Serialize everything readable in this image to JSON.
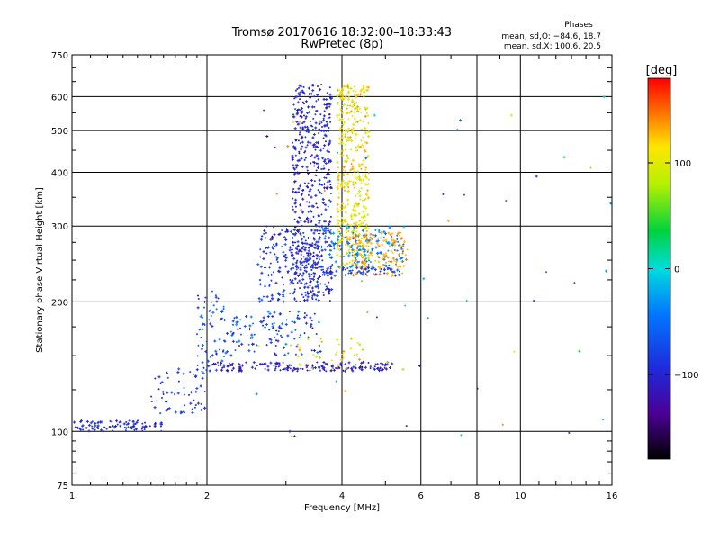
{
  "chart_data": {
    "type": "scatter",
    "title": "Tromsø 20170616 18:32:00–18:33:43",
    "subtitle": "RwPretec (8p)",
    "xlabel": "Frequency [MHz]",
    "ylabel": "Stationary phase Virtual Height [km]",
    "x_scale": "log",
    "y_scale": "log",
    "xlim": [
      1,
      16
    ],
    "ylim": [
      75,
      750
    ],
    "x_ticks": [
      1,
      2,
      4,
      6,
      8,
      10,
      16
    ],
    "x_tick_labels": [
      "1",
      "2",
      "4",
      "6",
      "8",
      "10",
      "16"
    ],
    "y_ticks": [
      75,
      100,
      200,
      300,
      400,
      500,
      600,
      750
    ],
    "y_tick_labels": [
      "75",
      "100",
      "200",
      "300",
      "400",
      "500",
      "600",
      "750"
    ],
    "grid": true,
    "phase_info": {
      "heading": "Phases",
      "line_o": "mean, sd,O: −84.6, 18.7",
      "line_x": "mean, sd,X: 100.6, 20.5"
    },
    "colorbar": {
      "label": "[deg]",
      "min": -180,
      "max": 180,
      "ticks": [
        100,
        0,
        -100
      ],
      "tick_labels": [
        "100",
        "0",
        "−100"
      ]
    },
    "point_groups": [
      {
        "name": "E/F1 low trace",
        "f": [
          1.0,
          1.6
        ],
        "h": [
          100,
          106
        ],
        "phase": [
          -110,
          -80
        ],
        "n": 90
      },
      {
        "name": "F1 ramp",
        "f": [
          1.5,
          2.0
        ],
        "h": [
          110,
          140
        ],
        "phase": [
          -105,
          -70
        ],
        "n": 60
      },
      {
        "name": "F1 ramp upper",
        "f": [
          1.9,
          2.2
        ],
        "h": [
          135,
          215
        ],
        "phase": [
          -100,
          -40
        ],
        "n": 70
      },
      {
        "name": "E-s layer band",
        "f": [
          2.0,
          5.2
        ],
        "h": [
          138,
          145
        ],
        "phase": [
          -125,
          -90
        ],
        "n": 170
      },
      {
        "name": "E-s high phase",
        "f": [
          3.0,
          4.5
        ],
        "h": [
          140,
          165
        ],
        "phase": [
          70,
          140
        ],
        "n": 40
      },
      {
        "name": "F cluster mid",
        "f": [
          2.2,
          3.6
        ],
        "h": [
          150,
          190
        ],
        "phase": [
          -110,
          -30
        ],
        "n": 120
      },
      {
        "name": "O-mode F2 column",
        "f": [
          3.1,
          3.8
        ],
        "h": [
          200,
          640
        ],
        "phase": [
          -120,
          -80
        ],
        "n": 520
      },
      {
        "name": "F2 dense low",
        "f": [
          2.6,
          3.6
        ],
        "h": [
          200,
          300
        ],
        "phase": [
          -115,
          -60
        ],
        "n": 200
      },
      {
        "name": "X-mode F2 column",
        "f": [
          3.9,
          4.6
        ],
        "h": [
          240,
          640
        ],
        "phase": [
          80,
          140
        ],
        "n": 450
      },
      {
        "name": "X-mode cyan band",
        "f": [
          3.6,
          5.5
        ],
        "h": [
          240,
          300
        ],
        "phase": [
          -60,
          -20
        ],
        "n": 160
      },
      {
        "name": "X-mode orange trace",
        "f": [
          4.2,
          5.6
        ],
        "h": [
          230,
          290
        ],
        "phase": [
          120,
          150
        ],
        "n": 120
      },
      {
        "name": "X-mode low edge",
        "f": [
          3.6,
          5.4
        ],
        "h": [
          230,
          240
        ],
        "phase": [
          -100,
          -60
        ],
        "n": 60
      },
      {
        "name": "Scattered echoes",
        "f": [
          2.5,
          16.0
        ],
        "h": [
          95,
          600
        ],
        "phase": [
          -150,
          150
        ],
        "n": 60
      }
    ]
  }
}
